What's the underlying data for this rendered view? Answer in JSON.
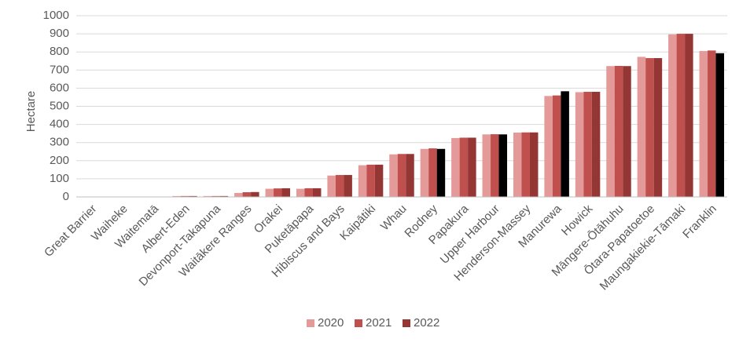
{
  "chart_data": {
    "type": "bar",
    "ylabel": "Hectare",
    "ylim": [
      0,
      1000
    ],
    "yticks": [
      "0",
      "100",
      "200",
      "300",
      "400",
      "500",
      "600",
      "700",
      "800",
      "900",
      "1000"
    ],
    "grid": true,
    "legend_position": "bottom",
    "categories": [
      "Great Barrier",
      "Waiheke",
      "Waitematā",
      "Albert-Eden",
      "Devonport-Takapuna",
      "Waitākere Ranges",
      "Orakei",
      "Puketāpapa",
      "Hibiscus and Bays",
      "Kaipātiki",
      "Whau",
      "Rodney",
      "Papakura",
      "Upper Harbour",
      "Henderson-Massey",
      "Manurewa",
      "Howick",
      "Māngere-Ōtāhuhu",
      "Ōtara-Papatoetoe",
      "Maungakiekie-Tāmaki",
      "Franklin"
    ],
    "series": [
      {
        "name": "2020",
        "color": "#e59a9a",
        "values": [
          0,
          0,
          0,
          5,
          5,
          22,
          45,
          45,
          118,
          175,
          235,
          265,
          325,
          345,
          355,
          557,
          578,
          722,
          773,
          897,
          805
        ]
      },
      {
        "name": "2021",
        "color": "#c0504d",
        "values": [
          0,
          0,
          0,
          5,
          5,
          26,
          47,
          48,
          121,
          178,
          237,
          268,
          327,
          346,
          356,
          560,
          580,
          723,
          766,
          900,
          808
        ]
      },
      {
        "name": "2022",
        "color": "#943634",
        "values": [
          0,
          0,
          0,
          5,
          5,
          27,
          48,
          48,
          121,
          178,
          237,
          265,
          327,
          345,
          356,
          583,
          580,
          722,
          766,
          900,
          793
        ]
      }
    ],
    "highlight_color": "#000000",
    "highlighted_points": [
      {
        "series": "2022",
        "category": "Rodney"
      },
      {
        "series": "2022",
        "category": "Upper Harbour"
      },
      {
        "series": "2022",
        "category": "Manurewa"
      },
      {
        "series": "2022",
        "category": "Franklin"
      }
    ]
  }
}
